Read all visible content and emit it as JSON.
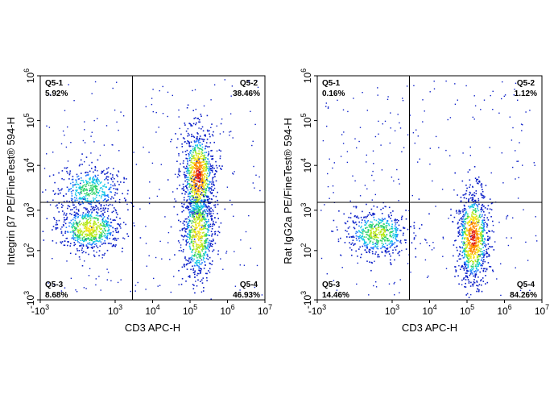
{
  "chart_data": [
    {
      "type": "scatter",
      "title": "",
      "xlabel": "CD3 APC-H",
      "ylabel": "Integrin β7 PE/FineTest® 594-H",
      "xscale": "biexponential",
      "yscale": "biexponential",
      "xlim": [
        "-10^3",
        "10^7"
      ],
      "ylim": [
        "-10^3",
        "10^6"
      ],
      "x_ticks": [
        {
          "base": "-10",
          "exp": "3"
        },
        {
          "base": "10",
          "exp": "3"
        },
        {
          "base": "10",
          "exp": "4"
        },
        {
          "base": "10",
          "exp": "5"
        },
        {
          "base": "10",
          "exp": "6"
        },
        {
          "base": "10",
          "exp": "7"
        }
      ],
      "y_ticks": [
        {
          "base": "-10",
          "exp": "3"
        },
        {
          "base": "10",
          "exp": "2"
        },
        {
          "base": "10",
          "exp": "3"
        },
        {
          "base": "10",
          "exp": "4"
        },
        {
          "base": "10",
          "exp": "5"
        },
        {
          "base": "10",
          "exp": "6"
        }
      ],
      "gate": {
        "x": 2900,
        "y": 1500
      },
      "quadrants": [
        {
          "name": "Q5-1",
          "percent": "5.92%",
          "position": "top-left"
        },
        {
          "name": "Q5-2",
          "percent": "38.46%",
          "position": "top-right"
        },
        {
          "name": "Q5-3",
          "percent": "8.68%",
          "position": "bottom-left"
        },
        {
          "name": "Q5-4",
          "percent": "46.93%",
          "position": "bottom-right"
        }
      ],
      "populations": [
        {
          "x": 300,
          "y": 600,
          "relative_density": 0.7
        },
        {
          "x": 300,
          "y": 3000,
          "relative_density": 0.45
        },
        {
          "x": 160000,
          "y": 6000,
          "relative_density": 1.0
        },
        {
          "x": 160000,
          "y": 500,
          "relative_density": 0.75
        }
      ],
      "density_colors": [
        "#0b1fc8",
        "#1e78ff",
        "#12c8e6",
        "#2ed36a",
        "#b8e81c",
        "#f6e41a",
        "#ff8c00",
        "#e21b10"
      ]
    },
    {
      "type": "scatter",
      "title": "",
      "xlabel": "CD3 APC-H",
      "ylabel": "Rat IgG2a PE/FineTest® 594-H",
      "xscale": "biexponential",
      "yscale": "biexponential",
      "xlim": [
        "-10^3",
        "10^7"
      ],
      "ylim": [
        "-10^3",
        "10^6"
      ],
      "x_ticks": [
        {
          "base": "-10",
          "exp": "3"
        },
        {
          "base": "10",
          "exp": "3"
        },
        {
          "base": "10",
          "exp": "4"
        },
        {
          "base": "10",
          "exp": "5"
        },
        {
          "base": "10",
          "exp": "6"
        },
        {
          "base": "10",
          "exp": "7"
        }
      ],
      "y_ticks": [
        {
          "base": "-10",
          "exp": "3"
        },
        {
          "base": "10",
          "exp": "2"
        },
        {
          "base": "10",
          "exp": "3"
        },
        {
          "base": "10",
          "exp": "4"
        },
        {
          "base": "10",
          "exp": "5"
        },
        {
          "base": "10",
          "exp": "6"
        }
      ],
      "gate": {
        "x": 2900,
        "y": 1500
      },
      "quadrants": [
        {
          "name": "Q5-1",
          "percent": "0.16%",
          "position": "top-left"
        },
        {
          "name": "Q5-2",
          "percent": "1.12%",
          "position": "top-right"
        },
        {
          "name": "Q5-3",
          "percent": "14.46%",
          "position": "bottom-left"
        },
        {
          "name": "Q5-4",
          "percent": "84.26%",
          "position": "bottom-right"
        }
      ],
      "populations": [
        {
          "x": 600,
          "y": 500,
          "relative_density": 0.6
        },
        {
          "x": 140000,
          "y": 400,
          "relative_density": 1.0
        }
      ],
      "density_colors": [
        "#0b1fc8",
        "#1e78ff",
        "#12c8e6",
        "#2ed36a",
        "#b8e81c",
        "#f6e41a",
        "#ff8c00",
        "#e21b10"
      ]
    }
  ]
}
